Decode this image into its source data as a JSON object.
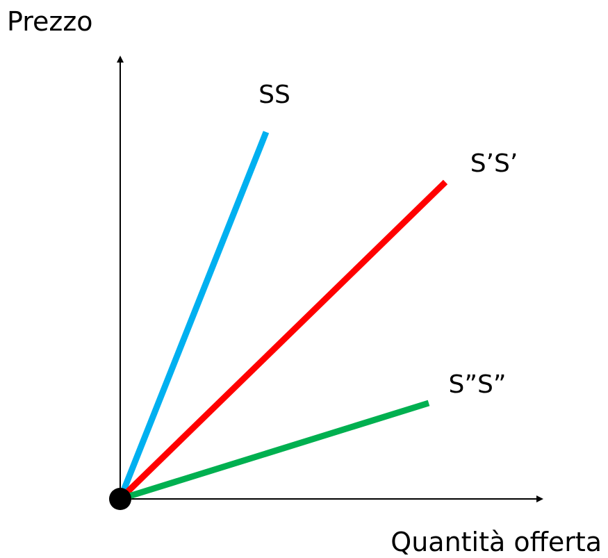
{
  "chart_data": {
    "type": "line",
    "title": "",
    "xlabel": "Quantità offerta",
    "ylabel": "Prezzo",
    "grid": false,
    "legend": "none",
    "xlim": [
      0,
      10
    ],
    "ylim": [
      0,
      10
    ],
    "origin": [
      0,
      0
    ],
    "series": [
      {
        "name": "SS",
        "color": "#00B0F0",
        "x": [
          0,
          3.5
        ],
        "y": [
          0,
          8.8
        ]
      },
      {
        "name": "S’S’",
        "color": "#FF0000",
        "x": [
          0,
          7.8
        ],
        "y": [
          0,
          7.6
        ]
      },
      {
        "name": "S”S”",
        "color": "#00B050",
        "x": [
          0,
          7.4
        ],
        "y": [
          0,
          2.3
        ]
      }
    ]
  }
}
